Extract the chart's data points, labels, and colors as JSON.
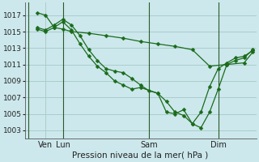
{
  "background_color": "#cce8ec",
  "grid_color": "#aacccc",
  "line_color": "#1a6b1a",
  "title": "Pression niveau de la mer( hPa )",
  "ylabel_values": [
    1003,
    1005,
    1007,
    1009,
    1011,
    1013,
    1015,
    1017
  ],
  "ylim": [
    1002.0,
    1018.5
  ],
  "xlim": [
    -0.2,
    13.2
  ],
  "vlines": [
    0.0,
    2.0,
    7.0,
    11.0
  ],
  "xtick_positions": [
    1.0,
    2.0,
    7.0,
    11.0
  ],
  "xtick_labels": [
    "Ven",
    "Lun",
    "Sam",
    "Dim"
  ],
  "series1": {
    "x": [
      0.5,
      1.0,
      1.5,
      2.0,
      2.5,
      3.5,
      4.5,
      5.5,
      6.5,
      7.5,
      8.5,
      9.5,
      10.5,
      11.5,
      12.5,
      13.0
    ],
    "y": [
      1017.3,
      1017.0,
      1015.5,
      1015.3,
      1015.0,
      1014.8,
      1014.5,
      1014.2,
      1013.8,
      1013.5,
      1013.2,
      1012.8,
      1010.8,
      1011.0,
      1011.2,
      1012.5
    ]
  },
  "series2": {
    "x": [
      0.5,
      1.0,
      1.5,
      2.0,
      2.5,
      3.0,
      3.5,
      4.0,
      4.5,
      5.0,
      5.5,
      6.0,
      6.5,
      7.0,
      7.5,
      8.0,
      8.5,
      9.0,
      9.5,
      10.0,
      10.5,
      11.0,
      11.5,
      12.0,
      12.5,
      13.0
    ],
    "y": [
      1015.5,
      1015.2,
      1015.8,
      1016.5,
      1015.8,
      1014.5,
      1012.8,
      1011.5,
      1010.5,
      1010.2,
      1010.0,
      1009.3,
      1008.5,
      1007.8,
      1007.5,
      1006.5,
      1005.2,
      1004.8,
      1003.8,
      1003.3,
      1005.2,
      1008.0,
      1011.0,
      1011.5,
      1011.8,
      1012.8
    ]
  },
  "series3": {
    "x": [
      0.5,
      1.0,
      1.5,
      2.0,
      2.5,
      3.0,
      3.5,
      4.0,
      4.5,
      5.0,
      5.5,
      6.0,
      6.5,
      7.5,
      8.0,
      8.5,
      9.0,
      9.5,
      10.0,
      10.5,
      11.0,
      11.5,
      12.0,
      12.5,
      13.0
    ],
    "y": [
      1015.3,
      1015.0,
      1015.5,
      1016.2,
      1015.2,
      1013.5,
      1012.0,
      1010.8,
      1010.0,
      1009.0,
      1008.5,
      1008.0,
      1008.2,
      1007.5,
      1005.2,
      1005.0,
      1005.5,
      1003.8,
      1005.2,
      1008.3,
      1010.5,
      1011.2,
      1011.8,
      1012.0,
      1012.7
    ]
  }
}
